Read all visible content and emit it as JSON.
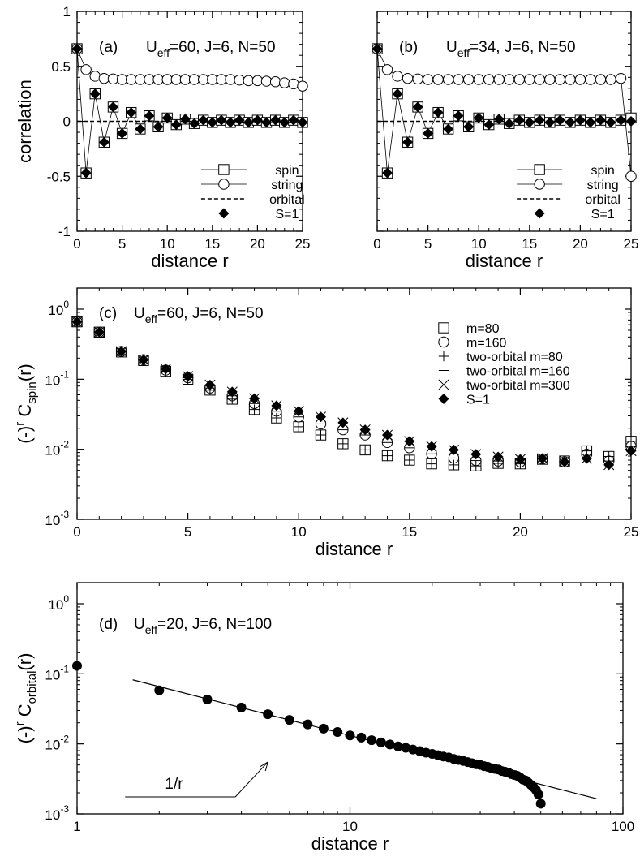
{
  "chart_data": [
    {
      "id": "a",
      "type": "line",
      "panel_label": "(a)",
      "params": {
        "u": "U",
        "sub": "eff",
        "rest": "=60, J=6, N=50"
      },
      "xlabel": "distance   r",
      "ylabel": "correlation",
      "xlim": [
        0,
        25
      ],
      "ylim": [
        -1,
        1
      ],
      "xticks": [
        0,
        5,
        10,
        15,
        20,
        25
      ],
      "xtick_labels": [
        "0",
        "5",
        "10",
        "15",
        "20",
        "25"
      ],
      "yticks": [
        -1,
        -0.5,
        0,
        0.5,
        1
      ],
      "ytick_labels": [
        "-1",
        "-0.5",
        "0",
        "0.5",
        "1"
      ],
      "legend": [
        "spin",
        "string",
        "orbital",
        "S=1"
      ],
      "x": [
        0,
        1,
        2,
        3,
        4,
        5,
        6,
        7,
        8,
        9,
        10,
        11,
        12,
        13,
        14,
        15,
        16,
        17,
        18,
        19,
        20,
        21,
        22,
        23,
        24,
        25
      ],
      "series": [
        {
          "name": "spin",
          "marker": "square",
          "line": "solid",
          "values": [
            0.66,
            -0.47,
            0.25,
            -0.19,
            0.13,
            -0.11,
            0.08,
            -0.07,
            0.05,
            -0.05,
            0.03,
            -0.03,
            0.02,
            -0.02,
            0.01,
            -0.01,
            0.01,
            -0.01,
            0.01,
            -0.01,
            0.01,
            -0.01,
            0.01,
            -0.01,
            0.01,
            -0.01
          ]
        },
        {
          "name": "string",
          "marker": "circle",
          "line": "solid",
          "values": [
            0.66,
            0.47,
            0.41,
            0.39,
            0.385,
            0.38,
            0.38,
            0.38,
            0.38,
            0.38,
            0.38,
            0.38,
            0.38,
            0.38,
            0.38,
            0.38,
            0.38,
            0.38,
            0.375,
            0.37,
            0.37,
            0.365,
            0.36,
            0.35,
            0.34,
            0.32
          ]
        },
        {
          "name": "orbital",
          "marker": "none",
          "line": "dashed",
          "values": [
            0,
            0,
            0,
            0,
            0,
            0,
            0,
            0,
            0,
            0,
            0,
            0,
            0,
            0,
            0,
            0,
            0,
            0,
            0,
            0,
            0,
            0,
            0,
            0,
            0,
            0
          ]
        },
        {
          "name": "S=1",
          "marker": "diamond",
          "line": "none",
          "values": [
            0.66,
            -0.47,
            0.25,
            -0.19,
            0.13,
            -0.11,
            0.08,
            -0.07,
            0.05,
            -0.05,
            0.03,
            -0.03,
            0.02,
            -0.02,
            0.01,
            -0.01,
            0.01,
            -0.01,
            0.01,
            -0.01,
            0.01,
            -0.01,
            0.01,
            -0.01,
            0.01,
            -0.01
          ]
        }
      ]
    },
    {
      "id": "b",
      "type": "line",
      "panel_label": "(b)",
      "params": {
        "u": "U",
        "sub": "eff",
        "rest": "=34, J=6, N=50"
      },
      "xlabel": "distance   r",
      "ylabel": "",
      "xlim": [
        0,
        25
      ],
      "ylim": [
        -1,
        1
      ],
      "xticks": [
        0,
        5,
        10,
        15,
        20,
        25
      ],
      "xtick_labels": [
        "0",
        "5",
        "10",
        "15",
        "20",
        "25"
      ],
      "yticks": [
        -1,
        -0.5,
        0,
        0.5,
        1
      ],
      "ytick_labels": [],
      "legend": [
        "spin",
        "string",
        "orbital",
        "S=1"
      ],
      "x": [
        0,
        1,
        2,
        3,
        4,
        5,
        6,
        7,
        8,
        9,
        10,
        11,
        12,
        13,
        14,
        15,
        16,
        17,
        18,
        19,
        20,
        21,
        22,
        23,
        24,
        25
      ],
      "series": [
        {
          "name": "spin",
          "marker": "square",
          "line": "solid",
          "values": [
            0.66,
            -0.47,
            0.25,
            -0.19,
            0.13,
            -0.11,
            0.08,
            -0.07,
            0.05,
            -0.05,
            0.03,
            -0.03,
            0.02,
            -0.02,
            0.01,
            -0.01,
            0.01,
            -0.01,
            0.01,
            -0.01,
            0.01,
            -0.01,
            0.01,
            -0.01,
            0.01,
            0.03
          ]
        },
        {
          "name": "string",
          "marker": "circle",
          "line": "solid",
          "values": [
            0.66,
            0.47,
            0.41,
            0.39,
            0.385,
            0.38,
            0.38,
            0.38,
            0.38,
            0.38,
            0.38,
            0.38,
            0.38,
            0.38,
            0.38,
            0.38,
            0.38,
            0.38,
            0.38,
            0.38,
            0.38,
            0.38,
            0.38,
            0.38,
            0.39,
            -0.5
          ]
        },
        {
          "name": "orbital",
          "marker": "none",
          "line": "dashed",
          "values": [
            0,
            0,
            0,
            0,
            0,
            0,
            0,
            0,
            0,
            0,
            0,
            0,
            0,
            0,
            0,
            0,
            0,
            0,
            0,
            0,
            0,
            0,
            0,
            0,
            0,
            0
          ]
        },
        {
          "name": "S=1",
          "marker": "diamond",
          "line": "none",
          "values": [
            0.66,
            -0.47,
            0.25,
            -0.19,
            0.13,
            -0.11,
            0.08,
            -0.07,
            0.05,
            -0.05,
            0.03,
            -0.03,
            0.02,
            -0.02,
            0.01,
            -0.01,
            0.01,
            -0.01,
            0.01,
            -0.01,
            0.01,
            -0.01,
            0.01,
            -0.01,
            0.01,
            0.0
          ]
        }
      ]
    },
    {
      "id": "c",
      "type": "scatter",
      "panel_label": "(c)",
      "params": {
        "u": "U",
        "sub": "eff",
        "rest": "=60, J=6, N=50"
      },
      "xlabel": "distance   r",
      "ylabel": {
        "pre": "(-)",
        "sup": "r",
        "mid": " C",
        "sub": "spin",
        "post": "(r)"
      },
      "xscale": "linear",
      "yscale": "log",
      "xlim": [
        0,
        25
      ],
      "ylim": [
        0.001,
        2
      ],
      "xticks": [
        0,
        5,
        10,
        15,
        20,
        25
      ],
      "xtick_labels": [
        "0",
        "5",
        "10",
        "15",
        "20",
        "25"
      ],
      "yticks": [
        0.001,
        0.01,
        0.1,
        1
      ],
      "ytick_labels": [
        {
          "base": "10",
          "exp": "-3"
        },
        {
          "base": "10",
          "exp": "-2"
        },
        {
          "base": "10",
          "exp": "-1"
        },
        {
          "base": "10",
          "exp": "0"
        }
      ],
      "legend": [
        "m=80",
        "m=160",
        "two-orbital m=80",
        "two-orbital m=160",
        "two-orbital m=300",
        "S=1"
      ],
      "x": [
        0,
        1,
        2,
        3,
        4,
        5,
        6,
        7,
        8,
        9,
        10,
        11,
        12,
        13,
        14,
        15,
        16,
        17,
        18,
        19,
        20,
        21,
        22,
        23,
        24,
        25
      ],
      "series": [
        {
          "name": "m=80",
          "marker": "square",
          "values": [
            0.66,
            0.47,
            0.245,
            0.185,
            0.13,
            0.1,
            0.07,
            0.052,
            0.037,
            0.028,
            0.021,
            0.016,
            0.012,
            0.0098,
            0.0081,
            0.007,
            0.0062,
            0.006,
            0.0058,
            0.0063,
            0.0062,
            0.0072,
            0.0068,
            0.0095,
            0.0079,
            0.013
          ]
        },
        {
          "name": "m=160",
          "marker": "circle",
          "values": [
            0.66,
            0.47,
            0.25,
            0.19,
            0.135,
            0.105,
            0.075,
            0.058,
            0.045,
            0.035,
            0.029,
            0.023,
            0.019,
            0.016,
            0.0125,
            0.0105,
            0.0086,
            0.0075,
            0.0069,
            0.0068,
            0.0066,
            0.0073,
            0.0066,
            0.0085,
            0.0068,
            0.011
          ]
        },
        {
          "name": "two-orbital m=80",
          "marker": "plus",
          "values": [
            0.66,
            0.47,
            0.245,
            0.185,
            0.13,
            0.1,
            0.07,
            0.052,
            0.037,
            0.028,
            0.021,
            0.016,
            0.012,
            0.0098,
            0.0081,
            0.007,
            0.0062,
            0.006,
            0.0058,
            0.0063,
            0.0062,
            0.0072,
            0.0068,
            0.0095,
            0.0079,
            0.013
          ]
        },
        {
          "name": "two-orbital m=160",
          "marker": "minus",
          "values": [
            0.66,
            0.47,
            0.25,
            0.19,
            0.135,
            0.105,
            0.075,
            0.058,
            0.045,
            0.035,
            0.029,
            0.023,
            0.019,
            0.016,
            0.0125,
            0.0105,
            0.0086,
            0.0075,
            0.0069,
            0.0068,
            0.0066,
            0.0073,
            0.0066,
            0.0085,
            0.0068,
            0.011
          ]
        },
        {
          "name": "two-orbital m=300",
          "marker": "x",
          "values": [
            0.66,
            0.47,
            0.25,
            0.19,
            0.14,
            0.11,
            0.083,
            0.066,
            0.053,
            0.042,
            0.035,
            0.029,
            0.024,
            0.019,
            0.016,
            0.013,
            0.011,
            0.0098,
            0.0085,
            0.0078,
            0.0072,
            0.0074,
            0.0068,
            0.0074,
            0.006,
            0.0095
          ]
        },
        {
          "name": "S=1",
          "marker": "diamond",
          "values": [
            0.66,
            0.47,
            0.25,
            0.19,
            0.14,
            0.11,
            0.083,
            0.066,
            0.053,
            0.042,
            0.035,
            0.029,
            0.024,
            0.019,
            0.016,
            0.013,
            0.011,
            0.0098,
            0.0085,
            0.0078,
            0.0072,
            0.0074,
            0.0066,
            0.0074,
            0.006,
            0.0095
          ]
        }
      ]
    },
    {
      "id": "d",
      "type": "scatter",
      "panel_label": "(d)",
      "params": {
        "u": "U",
        "sub": "eff",
        "rest": "=20, J=6, N=100"
      },
      "xlabel": "distance   r",
      "ylabel": {
        "pre": "(-)",
        "sup": "r",
        "mid": " C",
        "sub": "orbital",
        "post": "(r)"
      },
      "xscale": "log",
      "yscale": "log",
      "xlim": [
        1,
        100
      ],
      "ylim": [
        0.001,
        2
      ],
      "xticks": [
        1,
        10,
        100
      ],
      "xtick_labels": [
        "1",
        "10",
        "100"
      ],
      "yticks": [
        0.001,
        0.01,
        0.1,
        1
      ],
      "ytick_labels": [
        {
          "base": "10",
          "exp": "-3"
        },
        {
          "base": "10",
          "exp": "-2"
        },
        {
          "base": "10",
          "exp": "-1"
        },
        {
          "base": "10",
          "exp": "0"
        }
      ],
      "annotation": "1/r",
      "fit": {
        "label": "1/r",
        "x": [
          1.6,
          80
        ],
        "y": [
          0.082,
          0.00165
        ]
      },
      "series": [
        {
          "name": "orbital",
          "marker": "filled-circle",
          "x": [
            1,
            2,
            3,
            4,
            5,
            6,
            7,
            8,
            9,
            10,
            11,
            12,
            13,
            14,
            15,
            16,
            17,
            18,
            19,
            20,
            21,
            22,
            23,
            24,
            25,
            26,
            27,
            28,
            29,
            30,
            31,
            32,
            33,
            34,
            35,
            36,
            37,
            38,
            39,
            40,
            41,
            42,
            43,
            44,
            45,
            46,
            47,
            48,
            49,
            50
          ],
          "values": [
            0.13,
            0.058,
            0.043,
            0.033,
            0.0265,
            0.022,
            0.019,
            0.0165,
            0.0148,
            0.0132,
            0.0123,
            0.0113,
            0.0105,
            0.0098,
            0.0092,
            0.0088,
            0.0083,
            0.0079,
            0.0075,
            0.0072,
            0.0069,
            0.0066,
            0.0064,
            0.0061,
            0.0059,
            0.0057,
            0.0055,
            0.0053,
            0.0051,
            0.005,
            0.0048,
            0.0047,
            0.0045,
            0.0044,
            0.0043,
            0.0041,
            0.004,
            0.0039,
            0.0037,
            0.0036,
            0.0035,
            0.0033,
            0.0031,
            0.003,
            0.0028,
            0.0026,
            0.0024,
            0.0022,
            0.0019,
            0.0014
          ]
        }
      ]
    }
  ]
}
